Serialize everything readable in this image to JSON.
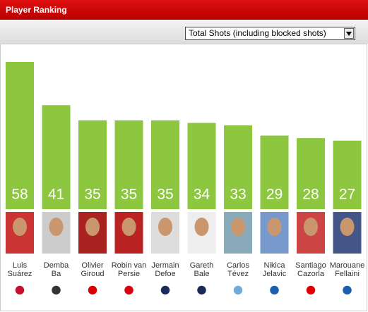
{
  "chart_data": {
    "type": "bar",
    "title": "Player Ranking",
    "filter": "Total Shots (including blocked shots)",
    "categories": [
      [
        "Luis",
        "Suárez"
      ],
      [
        "Demba",
        "Ba"
      ],
      [
        "Olivier",
        "Giroud"
      ],
      [
        "Robin van",
        "Persie"
      ],
      [
        "Jermain",
        "Defoe"
      ],
      [
        "Gareth",
        "Bale"
      ],
      [
        "Carlos",
        "Tévez"
      ],
      [
        "Nikica",
        "Jelavic"
      ],
      [
        "Santiago",
        "Cazorla"
      ],
      [
        "Marouane",
        "Fellaini"
      ]
    ],
    "values": [
      58,
      41,
      35,
      35,
      35,
      34,
      33,
      29,
      28,
      27
    ],
    "color": "#8dc63f"
  }
}
